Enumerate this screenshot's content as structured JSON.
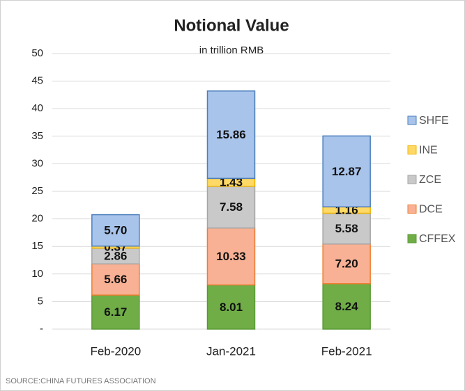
{
  "chart_data": {
    "type": "stacked_bar",
    "title": "Notional Value",
    "subtitle": "in trillion RMB",
    "source": "SOURCE:CHINA FUTURES ASSOCIATION",
    "categories": [
      "Feb-2020",
      "Jan-2021",
      "Feb-2021"
    ],
    "series": [
      {
        "name": "CFFEX",
        "color": "#70ad47",
        "values": [
          6.17,
          8.01,
          8.24
        ],
        "value_labels": [
          "6.17",
          "8.01",
          "8.24"
        ]
      },
      {
        "name": "DCE",
        "color": "#f8b195",
        "values": [
          5.66,
          10.33,
          7.2
        ],
        "value_labels": [
          "5.66",
          "10.33",
          "7.20"
        ]
      },
      {
        "name": "ZCE",
        "color": "#c9c9c9",
        "values": [
          2.86,
          7.58,
          5.58
        ],
        "value_labels": [
          "2.86",
          "7.58",
          "5.58"
        ]
      },
      {
        "name": "INE",
        "color": "#ffd966",
        "values": [
          0.37,
          1.43,
          1.16
        ],
        "value_labels": [
          "0.37",
          "1.43",
          "1.16"
        ]
      },
      {
        "name": "SHFE",
        "color": "#a9c4eb",
        "values": [
          5.7,
          15.86,
          12.87
        ],
        "value_labels": [
          "5.70",
          "15.86",
          "12.87"
        ]
      }
    ],
    "ylim": [
      0,
      50
    ],
    "yticks": [
      {
        "value": 0,
        "label": "-"
      },
      5,
      10,
      15,
      20,
      25,
      30,
      35,
      40,
      45,
      50
    ],
    "grid": true,
    "legend": "right"
  }
}
